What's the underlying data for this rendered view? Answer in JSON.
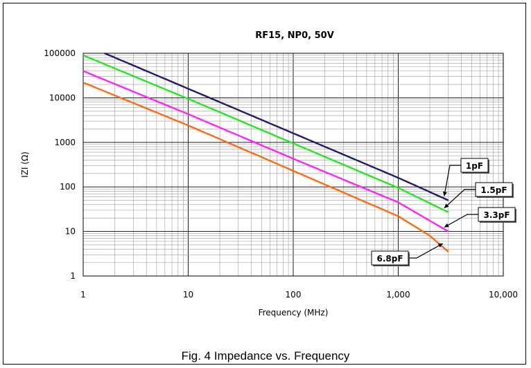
{
  "caption": "Fig. 4 Impedance vs. Frequency",
  "chart_data": {
    "type": "line",
    "title": "RF15, NP0, 50V",
    "xlabel": "Frequency (MHz)",
    "ylabel": "IZI (Ω)",
    "x_scale": "log",
    "y_scale": "log",
    "xlim": [
      1,
      10000
    ],
    "ylim": [
      1,
      100000
    ],
    "grid": true,
    "x_tick_labels": [
      "1",
      "10",
      "100",
      "1,000",
      "10,000"
    ],
    "y_tick_labels": [
      "1",
      "10",
      "100",
      "1000",
      "10000",
      "100000"
    ],
    "series": [
      {
        "name": "1pF",
        "color": "#1c1c6b",
        "x": [
          1.6,
          10,
          100,
          1000,
          3000
        ],
        "y": [
          100000,
          16000,
          1600,
          160,
          50
        ]
      },
      {
        "name": "1.5pF",
        "color": "#22e822",
        "x": [
          1,
          10,
          100,
          1000,
          3000
        ],
        "y": [
          90000,
          9500,
          950,
          95,
          27
        ]
      },
      {
        "name": "3.3pF",
        "color": "#ff22ff",
        "x": [
          1,
          10,
          100,
          1000,
          3000
        ],
        "y": [
          40000,
          4300,
          430,
          45,
          10
        ]
      },
      {
        "name": "6.8pF",
        "color": "#ff6a0f",
        "x": [
          1,
          10,
          100,
          1000,
          2000,
          3000
        ],
        "y": [
          22000,
          2400,
          230,
          22,
          8,
          3.5
        ]
      }
    ]
  }
}
